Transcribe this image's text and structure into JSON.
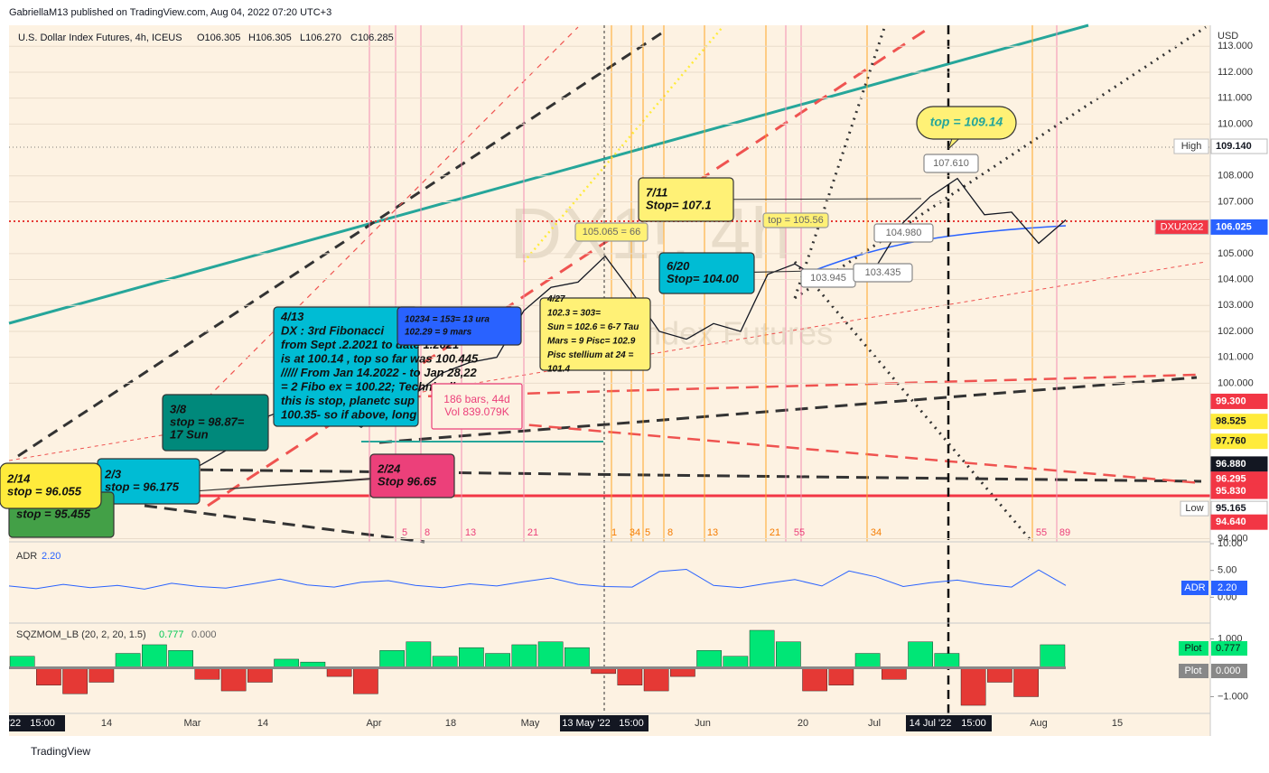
{
  "header": {
    "publisher": "GabriellaM13 published on TradingView.com, Aug 04, 2022 07:20 UTC+3",
    "legend": "U.S. Dollar Index Futures, 4h, ICEUS",
    "ohlc": [
      "O106.305",
      "H106.305",
      "L106.270",
      "C106.285"
    ],
    "currency": "USD",
    "watermark": "DX1!, 4h",
    "watermark_sub": "Dollar Index Futures"
  },
  "price_axis": {
    "ylim": [
      93.88,
      113.81
    ],
    "yticks": [
      {
        "value": 94,
        "label": "94.000"
      },
      {
        "value": 100,
        "label": "100.000"
      },
      {
        "value": 101,
        "label": "101.000"
      },
      {
        "value": 102,
        "label": "102.000"
      },
      {
        "value": 103,
        "label": "103.000"
      },
      {
        "value": 104,
        "label": "104.000"
      },
      {
        "value": 105,
        "label": "105.000"
      },
      {
        "value": 107,
        "label": "107.000"
      },
      {
        "value": 108,
        "label": "108.000"
      },
      {
        "value": 110,
        "label": "110.000"
      },
      {
        "value": 111,
        "label": "111.000"
      },
      {
        "value": 112,
        "label": "112.000"
      },
      {
        "value": 113,
        "label": "113.000"
      }
    ],
    "price_labels": [
      {
        "value": 109.14,
        "label": "109.140",
        "tag": "High",
        "color": "#ffffff"
      },
      {
        "value": 106.025,
        "label": "106.025",
        "tag": "DXU2022",
        "color": "#2962ff"
      },
      {
        "value": 99.3,
        "label": "99.300",
        "color": "#f23645"
      },
      {
        "value": 98.525,
        "label": "98.525",
        "color": "#ffeb3b"
      },
      {
        "value": 97.76,
        "label": "97.760",
        "color": "#ffeb3b"
      },
      {
        "value": 96.88,
        "label": "96.880",
        "color": "#131722"
      },
      {
        "value": 96.295,
        "label": "96.295",
        "color": "#f23645"
      },
      {
        "value": 95.83,
        "label": "95.830",
        "color": "#f23645"
      },
      {
        "value": 95.165,
        "label": "95.165",
        "tag": "Low",
        "color": "#ffffff"
      },
      {
        "value": 94.64,
        "label": "94.640",
        "color": "#f23645"
      }
    ]
  },
  "closes": [
    96.9,
    96.5,
    96.0,
    95.6,
    96.2,
    96.0,
    96.5,
    96.8,
    97.4,
    98.5,
    98.9,
    98.6,
    98.8,
    98.3,
    99.0,
    99.6,
    100.4,
    100.8,
    101.0,
    102.8,
    103.7,
    103.9,
    104.9,
    103.5,
    102.0,
    101.7,
    102.3,
    102.0,
    104.2,
    104.6,
    104.0,
    103.8,
    104.5,
    106.2,
    107.2,
    107.9,
    106.5,
    106.6,
    105.4,
    106.3
  ],
  "annotations": [
    {
      "lines": [
        "top = 109.14"
      ]
    },
    {
      "lines": [
        "7/11",
        "Stop= 107.1"
      ]
    },
    {
      "lines": [
        "6/20",
        "Stop= 104.00"
      ]
    },
    {
      "lines": [
        "4/13",
        "DX : 3rd Fibonacci",
        "from Sept .2.2021 to date 1.2021",
        "is at 100.14 , top so far was 100.445",
        "///// From Jan 14.2022 - to Jan 28,22",
        "= 2 Fibo ex = 100.22; Technically,",
        "this is stop, planetc sup",
        "100.35- so if above, long"
      ]
    },
    {
      "lines": [
        "10234 = 153= 13 ura",
        "102.29 = 9 mars"
      ]
    },
    {
      "lines": [
        "4/27",
        "102.3 = 303=",
        "Sun = 102.6 = 6-7 Tau",
        "Mars = 9 Pisc= 102.9",
        "Pisc stellium at 24 =",
        "101.4"
      ]
    },
    {
      "lines": [
        "3/8",
        "stop = 98.87=",
        "17 Sun"
      ]
    },
    {
      "lines": [
        "186 bars, 44d",
        "Vol 839.079K"
      ]
    },
    {
      "lines": [
        "2/24",
        "Stop 96.65"
      ]
    },
    {
      "lines": [
        "2/3",
        "stop = 96.175"
      ]
    },
    {
      "lines": [
        "stop = 95.455"
      ]
    },
    {
      "lines": [
        "2/14",
        "stop = 96.055"
      ]
    },
    {
      "lines": [
        "105.065 = 66"
      ]
    },
    {
      "lines": [
        "top = 105.56"
      ]
    },
    {
      "lines": [
        "107.610"
      ]
    },
    {
      "lines": [
        "104.980"
      ]
    },
    {
      "lines": [
        "103.945"
      ]
    },
    {
      "lines": [
        "103.435"
      ]
    }
  ],
  "fib_counts": [
    "5",
    "8",
    "13",
    "21",
    "1",
    "34",
    "5",
    "8",
    "13",
    "21",
    "55",
    "34",
    "55",
    "89"
  ],
  "adr": {
    "title": "ADR",
    "value": "2.20",
    "axis_tag": "ADR",
    "ylim": [
      -4.83,
      10.34
    ],
    "yticks": [
      {
        "value": 10,
        "label": "10.00"
      },
      {
        "value": 5,
        "label": "5.00"
      },
      {
        "value": 0,
        "label": "0.00"
      }
    ],
    "values": [
      2.1,
      1.6,
      2.4,
      1.8,
      2.2,
      1.5,
      2.6,
      2.0,
      1.7,
      2.5,
      3.4,
      2.3,
      1.9,
      2.8,
      3.1,
      2.2,
      1.8,
      2.5,
      2.1,
      2.9,
      3.6,
      2.4,
      2.0,
      1.9,
      4.8,
      5.2,
      2.2,
      1.8,
      2.6,
      3.3,
      2.1,
      4.9,
      3.8,
      2.0,
      2.7,
      3.2,
      2.4,
      1.9,
      5.1,
      2.2
    ]
  },
  "sqz": {
    "title": "SQZMOM_LB (20, 2, 20, 1.5)",
    "value_a": "0.777",
    "value_b": "0.000",
    "plot_tags": [
      "Plot",
      "Plot"
    ],
    "ylim": [
      -1.58,
      1.55
    ],
    "yticks": [
      {
        "value": 1,
        "label": "1.000"
      },
      {
        "value": -1,
        "label": "−1.000"
      }
    ],
    "values": [
      0.4,
      -0.6,
      -0.9,
      -0.5,
      0.5,
      0.8,
      0.6,
      -0.4,
      -0.8,
      -0.5,
      0.3,
      0.2,
      -0.3,
      -0.9,
      0.6,
      0.9,
      0.4,
      0.7,
      0.5,
      0.8,
      0.9,
      0.7,
      -0.2,
      -0.6,
      -0.8,
      -0.3,
      0.6,
      0.4,
      1.3,
      0.9,
      -0.8,
      -0.6,
      0.5,
      -0.4,
      0.9,
      0.5,
      -1.3,
      -0.5,
      -1.0,
      0.8
    ]
  },
  "time_axis": [
    "'22",
    "15:00",
    "14",
    "Mar",
    "14",
    "Apr",
    "18",
    "May",
    "13 May '22",
    "15:00",
    "Jun",
    "20",
    "Jul",
    "14 Jul '22",
    "15:00",
    "Aug",
    "15"
  ],
  "footer": "TradingView"
}
